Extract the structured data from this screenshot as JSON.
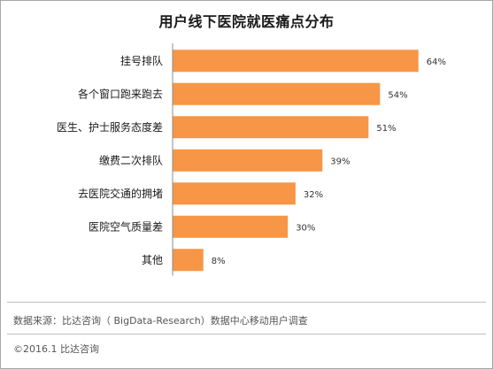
{
  "chart_data": {
    "type": "bar",
    "orientation": "horizontal",
    "title": "用户线下医院就医痛点分布",
    "categories": [
      "挂号排队",
      "各个窗口跑来跑去",
      "医生、护士服务态度差",
      "缴费二次排队",
      "去医院交通的拥堵",
      "医院空气质量差",
      "其他"
    ],
    "values": [
      64,
      54,
      51,
      39,
      32,
      30,
      8
    ],
    "value_labels": [
      "64%",
      "54%",
      "51%",
      "39%",
      "32%",
      "30%",
      "8%"
    ],
    "xlim": [
      0,
      100
    ],
    "unit": "%",
    "grid": false,
    "bar_color": "#f79646",
    "axis_color": "#8c8c8c"
  },
  "footer": {
    "source": "数据来源：比达咨询（ BigData-Research）数据中心移动用户调查",
    "copyright": "©2016.1 比达咨询"
  }
}
